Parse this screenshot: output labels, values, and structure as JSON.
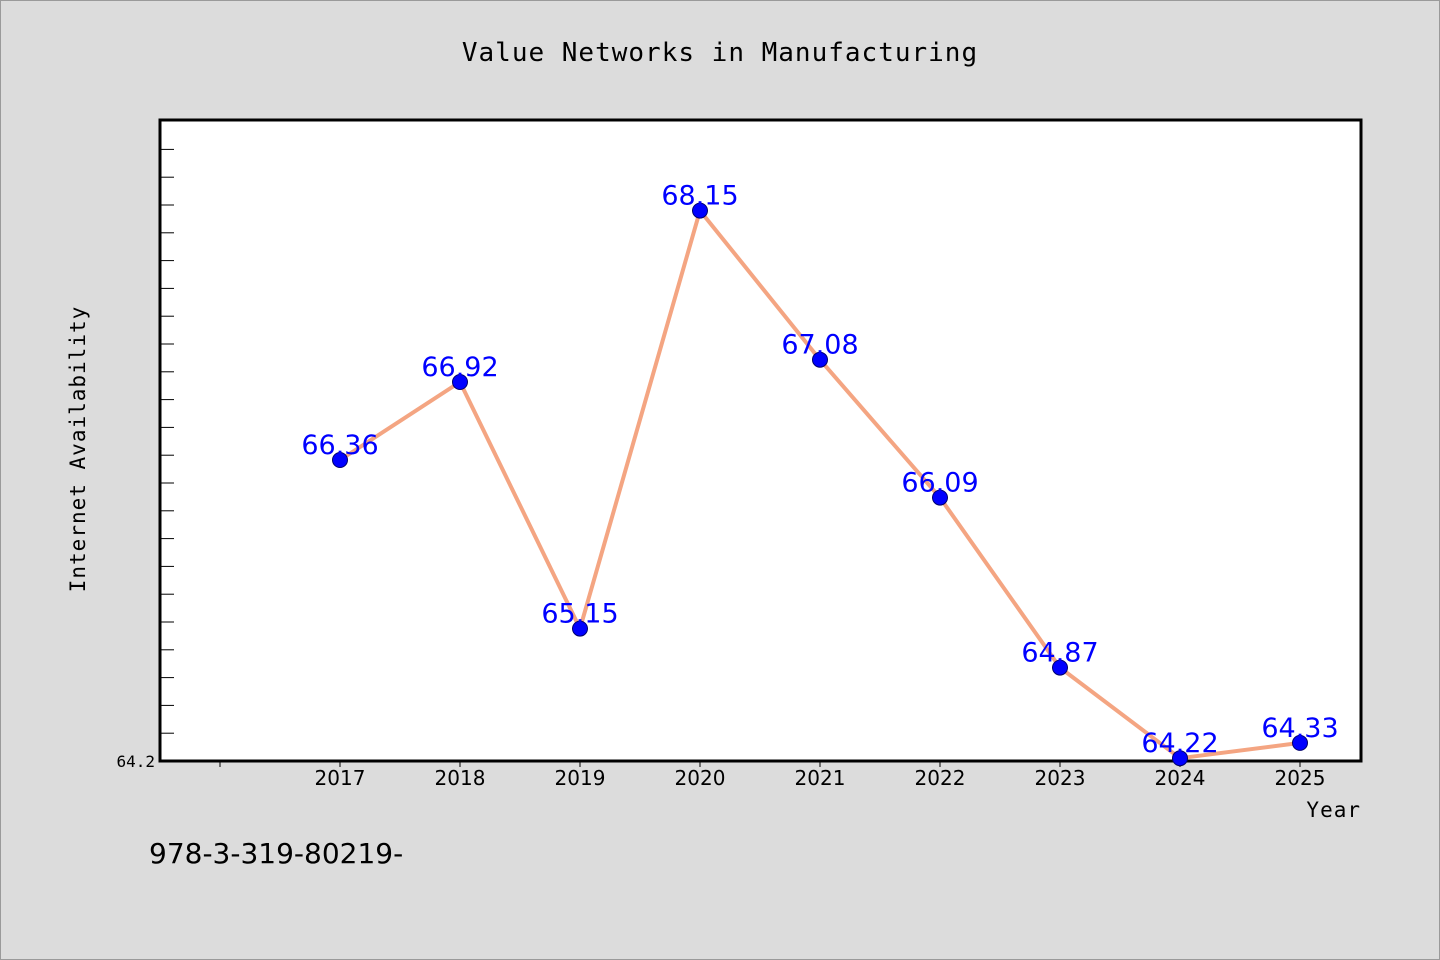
{
  "chart_data": {
    "type": "line",
    "title": "Value Networks in Manufacturing",
    "xlabel": "Year",
    "ylabel": "Internet Availability",
    "x": [
      "2017",
      "2018",
      "2019",
      "2020",
      "2021",
      "2022",
      "2023",
      "2024",
      "2025"
    ],
    "series": [
      {
        "values": [
          66.36,
          66.92,
          65.15,
          68.15,
          67.08,
          66.09,
          64.87,
          64.22,
          64.33
        ],
        "labels": [
          "66.36",
          "66.92",
          "65.15",
          "68.15",
          "67.08",
          "66.09",
          "64.87",
          "64.22",
          "64.33"
        ],
        "line_color": "#f4a582",
        "marker_color": "#0000ff",
        "label_color": "#0000ff"
      }
    ],
    "ytick_labels": [
      "64.2"
    ],
    "ylim": [
      64.2,
      68.8
    ],
    "grid": false,
    "legend": "none"
  },
  "footer": {
    "text": "978-3-319-80219-"
  },
  "colors": {
    "background": "#dcdcdc",
    "plot_background": "#ffffff",
    "axis": "#000000"
  }
}
